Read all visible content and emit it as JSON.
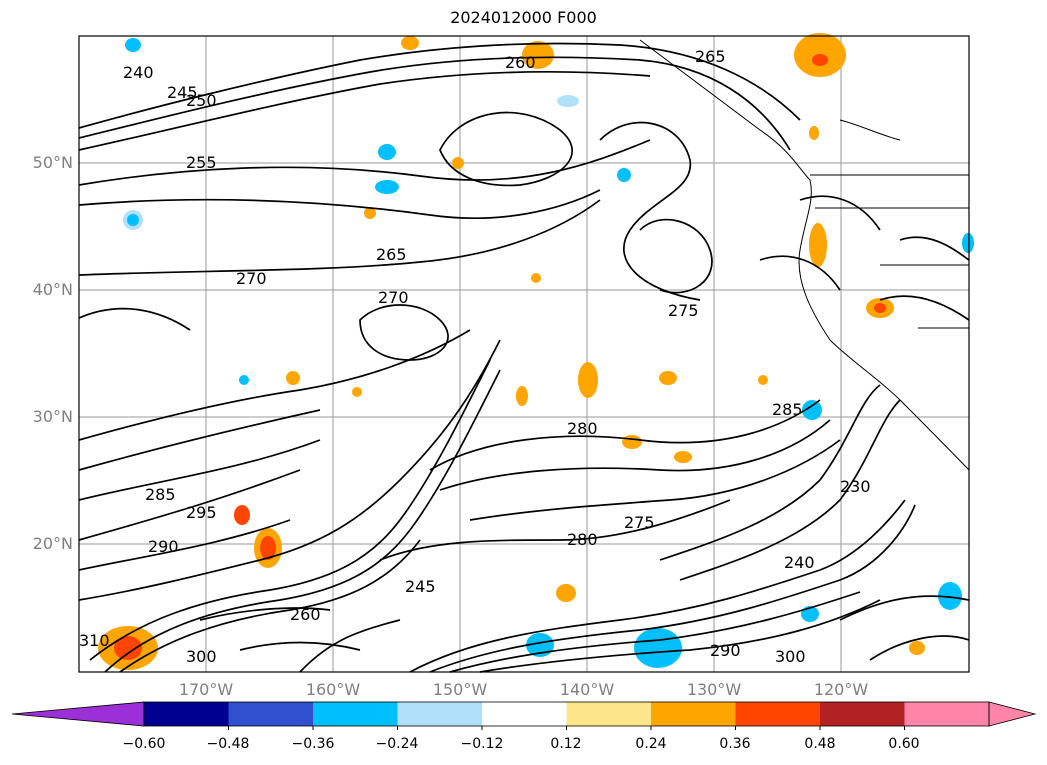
{
  "map": {
    "title": "2024012000 F000",
    "lat_labels": [
      "50°N",
      "40°N",
      "30°N",
      "20°N"
    ],
    "lon_labels": [
      "170°W",
      "160°W",
      "150°W",
      "140°W",
      "130°W",
      "120°W"
    ],
    "contour_labels": [
      "240",
      "245",
      "250",
      "255",
      "260",
      "265",
      "270",
      "275",
      "280",
      "285",
      "290",
      "295",
      "300",
      "310",
      "230",
      "240",
      "245",
      "260",
      "265",
      "270",
      "275",
      "280",
      "285",
      "290",
      "300"
    ]
  },
  "colorbar": {
    "ticks": [
      "−0.60",
      "−0.48",
      "−0.36",
      "−0.24",
      "−0.12",
      "0.12",
      "0.24",
      "0.36",
      "0.48",
      "0.60"
    ],
    "colors": [
      "#9b30d9",
      "#000090",
      "#3050d0",
      "#00bfff",
      "#b0e0fa",
      "#ffffff",
      "#fde68a",
      "#ffa500",
      "#ff4500",
      "#b22222",
      "#ff85a8",
      "#ff85a8"
    ],
    "low_extend_color": "#9b30d9",
    "high_extend_color": "#ff85a8"
  }
}
